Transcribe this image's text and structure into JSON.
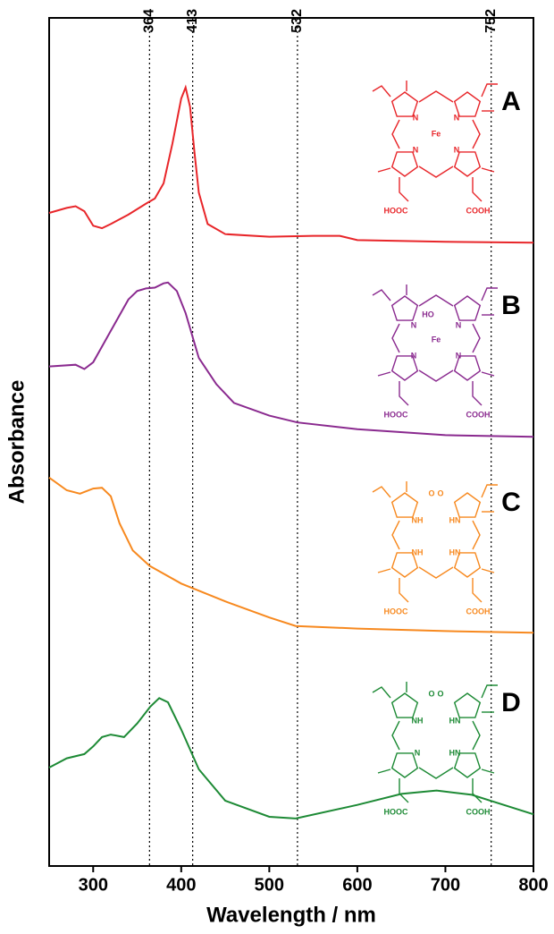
{
  "chart_data": {
    "type": "line",
    "x_label": "Wavelength  /  nm",
    "y_label": "Absorbance",
    "xlim": [
      250,
      800
    ],
    "ylim": [
      0,
      100
    ],
    "xticks": [
      300,
      400,
      500,
      600,
      700,
      800
    ],
    "reference_lines": [
      364,
      413,
      532,
      752
    ],
    "series": [
      {
        "name": "A",
        "color": "#e8262a",
        "x": [
          250,
          270,
          280,
          290,
          300,
          310,
          320,
          340,
          360,
          370,
          380,
          390,
          400,
          405,
          410,
          415,
          420,
          430,
          450,
          500,
          550,
          580,
          600,
          700,
          800
        ],
        "values": [
          77.0,
          77.6,
          77.8,
          77.2,
          75.5,
          75.2,
          75.7,
          76.8,
          78.1,
          78.7,
          80.5,
          85.2,
          90.5,
          91.8,
          89.5,
          84.2,
          79.4,
          75.7,
          74.5,
          74.2,
          74.3,
          74.3,
          73.8,
          73.6,
          73.5
        ],
        "structure_labels": [
          "N",
          "N",
          "Fe",
          "N",
          "N",
          "HOOC",
          "COOH"
        ]
      },
      {
        "name": "B",
        "color": "#8a2a8f",
        "x": [
          250,
          280,
          290,
          300,
          320,
          340,
          350,
          360,
          370,
          380,
          385,
          395,
          405,
          420,
          440,
          460,
          500,
          532,
          600,
          700,
          800
        ],
        "values": [
          58.9,
          59.1,
          58.6,
          59.4,
          63.1,
          66.8,
          67.8,
          68.1,
          68.2,
          68.7,
          68.8,
          67.8,
          65.2,
          59.9,
          56.8,
          54.6,
          53.1,
          52.3,
          51.5,
          50.8,
          50.6
        ],
        "structure_labels": [
          "HO",
          "N",
          "N",
          "Fe",
          "N",
          "N",
          "HOOC",
          "COOH"
        ]
      },
      {
        "name": "C",
        "color": "#f7891f",
        "x": [
          250,
          270,
          285,
          300,
          310,
          320,
          330,
          345,
          364,
          400,
          450,
          500,
          530,
          600,
          700,
          800
        ],
        "values": [
          45.8,
          44.3,
          43.9,
          44.5,
          44.6,
          43.6,
          40.4,
          37.2,
          35.4,
          33.3,
          31.2,
          29.3,
          28.3,
          28.0,
          27.7,
          27.5
        ],
        "structure_labels": [
          "O",
          "O",
          "NH",
          "HN",
          "NH",
          "HN",
          "HOOC",
          "COOH"
        ]
      },
      {
        "name": "D",
        "color": "#1d8a35",
        "x": [
          250,
          270,
          290,
          300,
          310,
          320,
          335,
          350,
          365,
          375,
          385,
          400,
          420,
          450,
          500,
          530,
          600,
          650,
          690,
          730,
          800
        ],
        "values": [
          11.6,
          12.7,
          13.2,
          14.1,
          15.2,
          15.5,
          15.2,
          16.8,
          18.8,
          19.8,
          19.3,
          16.1,
          11.4,
          7.7,
          5.8,
          5.6,
          7.2,
          8.5,
          8.9,
          8.4,
          6.1
        ],
        "structure_labels": [
          "O",
          "O",
          "NH",
          "HN",
          "N",
          "HN",
          "HOOC",
          "COOH"
        ]
      }
    ]
  }
}
